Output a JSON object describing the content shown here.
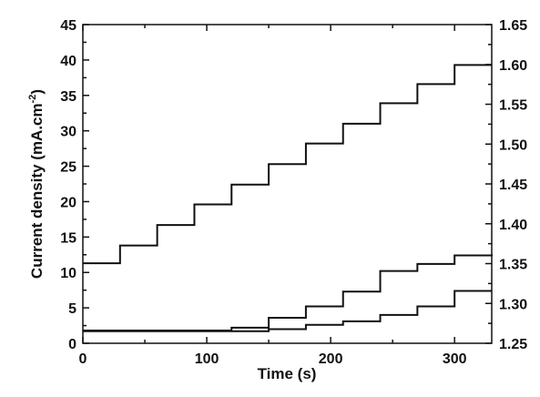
{
  "chart_data": {
    "type": "line",
    "title": "",
    "xlabel": "Time (s)",
    "ylabel_left": "Current density (mA.cm",
    "ylabel_left_sup": "-2",
    "ylabel_left_close": ")",
    "ylabel_right": "",
    "xlim": [
      0,
      330
    ],
    "ylim_left": [
      0,
      45
    ],
    "ylim_right": [
      1.25,
      1.65
    ],
    "x_ticks": [
      "0",
      "100",
      "200",
      "300"
    ],
    "x_tick_values": [
      0,
      100,
      200,
      300
    ],
    "y_left_ticks": [
      "0",
      "5",
      "10",
      "15",
      "20",
      "25",
      "30",
      "35",
      "40",
      "45"
    ],
    "y_left_tick_values": [
      0,
      5,
      10,
      15,
      20,
      25,
      30,
      35,
      40,
      45
    ],
    "y_right_ticks": [
      "1.25",
      "1.30",
      "1.35",
      "1.40",
      "1.45",
      "1.50",
      "1.55",
      "1.60",
      "1.65"
    ],
    "y_right_tick_values": [
      1.25,
      1.3,
      1.35,
      1.4,
      1.45,
      1.5,
      1.55,
      1.6,
      1.65
    ],
    "grid": false,
    "legend": "none",
    "series": [
      {
        "axis": "left",
        "x": [
          0,
          30,
          60,
          90,
          120,
          150,
          180,
          210,
          240,
          270,
          300,
          330
        ],
        "y": [
          11.3,
          13.8,
          16.7,
          19.6,
          22.4,
          25.3,
          28.2,
          31.0,
          33.9,
          36.6,
          39.3,
          39.3
        ]
      },
      {
        "axis": "left",
        "x": [
          0,
          30,
          60,
          90,
          120,
          150,
          180,
          210,
          240,
          270,
          300,
          330
        ],
        "y": [
          1.8,
          1.8,
          1.8,
          1.8,
          2.2,
          3.6,
          5.2,
          7.3,
          10.2,
          11.2,
          12.4,
          12.3
        ]
      },
      {
        "axis": "left",
        "x": [
          0,
          30,
          60,
          90,
          120,
          150,
          180,
          210,
          240,
          270,
          300,
          330
        ],
        "y": [
          1.7,
          1.7,
          1.7,
          1.7,
          1.7,
          2.0,
          2.6,
          3.1,
          4.0,
          5.2,
          7.4,
          7.4
        ]
      }
    ]
  }
}
